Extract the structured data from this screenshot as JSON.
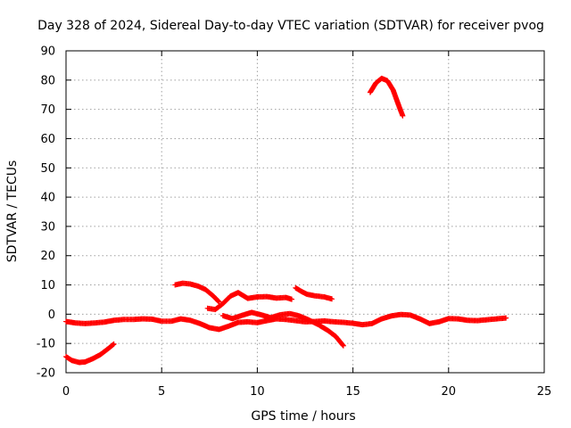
{
  "chart_data": {
    "type": "scatter",
    "title": "Day 328 of 2024, Sidereal Day-to-day VTEC variation (SDTVAR) for receiver pvog",
    "xlabel": "GPS time / hours",
    "ylabel": "SDTVAR / TECUs",
    "xlim": [
      0,
      25
    ],
    "ylim": [
      -20,
      90
    ],
    "xticks": [
      0,
      5,
      10,
      15,
      20,
      25
    ],
    "xtick_labels": [
      "0",
      "5",
      "10",
      "15",
      "20",
      "25"
    ],
    "yticks": [
      -20,
      -10,
      0,
      10,
      20,
      30,
      40,
      50,
      60,
      70,
      80,
      90
    ],
    "ytick_labels": [
      "-20",
      "-10",
      "0",
      "10",
      "20",
      "30",
      "40",
      "50",
      "60",
      "70",
      "80",
      "90"
    ],
    "grid": true,
    "marker_color": "#ff0000",
    "series": [
      {
        "name": "arc-1",
        "points": [
          [
            0.0,
            -14.5
          ],
          [
            0.3,
            -15.8
          ],
          [
            0.7,
            -16.5
          ],
          [
            1.0,
            -16.3
          ],
          [
            1.4,
            -15.2
          ],
          [
            1.8,
            -13.8
          ],
          [
            2.2,
            -11.8
          ],
          [
            2.5,
            -10.2
          ]
        ]
      },
      {
        "name": "arc-2",
        "points": [
          [
            0.0,
            -2.5
          ],
          [
            0.5,
            -3.0
          ],
          [
            1.0,
            -3.2
          ],
          [
            1.5,
            -3.0
          ],
          [
            2.0,
            -2.7
          ],
          [
            2.5,
            -2.1
          ],
          [
            3.0,
            -1.8
          ],
          [
            3.5,
            -1.8
          ],
          [
            4.0,
            -1.6
          ],
          [
            4.5,
            -1.7
          ],
          [
            5.0,
            -2.4
          ],
          [
            5.5,
            -2.4
          ],
          [
            6.0,
            -1.6
          ],
          [
            6.5,
            -2.1
          ],
          [
            7.0,
            -3.2
          ],
          [
            7.5,
            -4.6
          ],
          [
            8.0,
            -5.2
          ],
          [
            8.5,
            -4.1
          ],
          [
            9.0,
            -2.8
          ],
          [
            9.5,
            -2.6
          ],
          [
            10.0,
            -2.9
          ],
          [
            10.5,
            -2.2
          ],
          [
            11.0,
            -1.6
          ],
          [
            11.5,
            -1.8
          ],
          [
            12.0,
            -2.2
          ],
          [
            12.5,
            -2.6
          ],
          [
            13.0,
            -2.5
          ],
          [
            13.5,
            -2.3
          ],
          [
            14.0,
            -2.6
          ],
          [
            14.5,
            -2.8
          ],
          [
            15.0,
            -3.1
          ],
          [
            15.5,
            -3.6
          ],
          [
            16.0,
            -3.2
          ],
          [
            16.5,
            -1.6
          ],
          [
            17.0,
            -0.6
          ],
          [
            17.5,
            -0.1
          ],
          [
            18.0,
            -0.3
          ],
          [
            18.5,
            -1.6
          ],
          [
            19.0,
            -3.2
          ],
          [
            19.5,
            -2.6
          ],
          [
            20.0,
            -1.5
          ],
          [
            20.5,
            -1.6
          ],
          [
            21.0,
            -2.1
          ],
          [
            21.5,
            -2.2
          ],
          [
            22.0,
            -1.9
          ],
          [
            22.5,
            -1.6
          ],
          [
            23.0,
            -1.3
          ]
        ]
      },
      {
        "name": "arc-3",
        "points": [
          [
            5.7,
            10.0
          ],
          [
            6.1,
            10.6
          ],
          [
            6.5,
            10.3
          ],
          [
            6.9,
            9.6
          ],
          [
            7.3,
            8.4
          ],
          [
            7.7,
            6.2
          ],
          [
            8.0,
            4.2
          ]
        ]
      },
      {
        "name": "arc-4",
        "points": [
          [
            7.4,
            2.0
          ],
          [
            7.8,
            1.6
          ],
          [
            8.2,
            3.6
          ],
          [
            8.6,
            6.2
          ],
          [
            9.0,
            7.4
          ],
          [
            9.5,
            5.4
          ],
          [
            10.0,
            5.9
          ],
          [
            10.5,
            6.0
          ],
          [
            11.0,
            5.5
          ],
          [
            11.5,
            5.7
          ],
          [
            11.8,
            5.1
          ]
        ]
      },
      {
        "name": "arc-5",
        "points": [
          [
            12.0,
            9.0
          ],
          [
            12.3,
            7.8
          ],
          [
            12.6,
            6.8
          ],
          [
            13.0,
            6.3
          ],
          [
            13.5,
            5.9
          ],
          [
            13.9,
            5.2
          ]
        ]
      },
      {
        "name": "arc-6",
        "points": [
          [
            8.2,
            -0.5
          ],
          [
            8.7,
            -1.5
          ],
          [
            9.2,
            -0.4
          ],
          [
            9.7,
            0.6
          ],
          [
            10.2,
            -0.2
          ],
          [
            10.7,
            -1.2
          ],
          [
            11.2,
            -0.2
          ],
          [
            11.7,
            0.2
          ],
          [
            12.2,
            -0.6
          ],
          [
            12.7,
            -2.0
          ],
          [
            13.2,
            -3.6
          ],
          [
            13.7,
            -5.6
          ],
          [
            14.1,
            -7.6
          ],
          [
            14.5,
            -10.8
          ]
        ]
      },
      {
        "name": "arc-7",
        "points": [
          [
            15.9,
            75.8
          ],
          [
            16.2,
            79.0
          ],
          [
            16.5,
            80.6
          ],
          [
            16.8,
            79.8
          ],
          [
            17.1,
            76.6
          ],
          [
            17.4,
            71.2
          ],
          [
            17.6,
            67.8
          ]
        ]
      }
    ]
  }
}
